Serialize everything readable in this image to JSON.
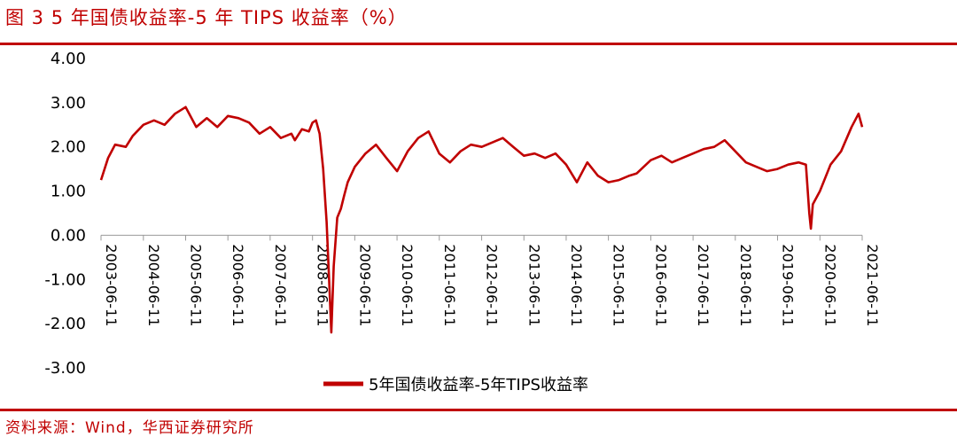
{
  "figure": {
    "title": "图 3 5 年国债收益率-5 年 TIPS 收益率（%）",
    "source": "资料来源：Wind，华西证券研究所"
  },
  "colors": {
    "accent": "#c00000",
    "series": "#c00000"
  },
  "chart_data": {
    "type": "line",
    "ylim": [
      -3,
      4
    ],
    "yticks": [
      "4.00",
      "3.00",
      "2.00",
      "1.00",
      "0.00",
      "-1.00",
      "-2.00",
      "-3.00"
    ],
    "xticks": [
      "2003-06-11",
      "2004-06-11",
      "2005-06-11",
      "2006-06-11",
      "2007-06-11",
      "2008-06-11",
      "2009-06-11",
      "2010-06-11",
      "2011-06-11",
      "2012-06-11",
      "2013-06-11",
      "2014-06-11",
      "2015-06-11",
      "2016-06-11",
      "2017-06-11",
      "2018-06-11",
      "2019-06-11",
      "2020-06-11",
      "2021-06-11"
    ],
    "legend": "top-bottom-center",
    "grid": false,
    "series": [
      {
        "name": "5年国债收益率-5年TIPS收益率",
        "x": [
          "2003-06-11",
          "2003-08-11",
          "2003-10-11",
          "2004-01-11",
          "2004-03-11",
          "2004-06-11",
          "2004-09-11",
          "2004-12-11",
          "2005-03-11",
          "2005-06-11",
          "2005-09-11",
          "2005-12-11",
          "2006-03-11",
          "2006-06-11",
          "2006-09-11",
          "2006-12-11",
          "2007-03-11",
          "2007-06-11",
          "2007-09-11",
          "2007-12-11",
          "2008-01-11",
          "2008-03-11",
          "2008-05-11",
          "2008-06-11",
          "2008-07-11",
          "2008-08-11",
          "2008-09-11",
          "2008-10-11",
          "2008-11-01",
          "2008-11-20",
          "2008-12-11",
          "2009-01-11",
          "2009-02-11",
          "2009-03-11",
          "2009-04-11",
          "2009-06-11",
          "2009-09-11",
          "2009-12-11",
          "2010-03-11",
          "2010-06-11",
          "2010-09-11",
          "2010-12-11",
          "2011-03-11",
          "2011-06-11",
          "2011-09-11",
          "2011-12-11",
          "2012-03-11",
          "2012-06-11",
          "2012-09-11",
          "2012-12-11",
          "2013-03-11",
          "2013-06-11",
          "2013-09-11",
          "2013-12-11",
          "2014-03-11",
          "2014-06-11",
          "2014-09-11",
          "2014-12-11",
          "2015-03-11",
          "2015-06-11",
          "2015-09-11",
          "2015-12-11",
          "2016-02-11",
          "2016-06-11",
          "2016-09-11",
          "2016-12-11",
          "2017-03-11",
          "2017-06-11",
          "2017-09-11",
          "2017-12-11",
          "2018-03-11",
          "2018-06-11",
          "2018-09-11",
          "2018-12-11",
          "2019-03-11",
          "2019-06-11",
          "2019-09-11",
          "2019-12-11",
          "2020-02-11",
          "2020-03-11",
          "2020-03-25",
          "2020-04-11",
          "2020-06-11",
          "2020-09-11",
          "2020-12-11",
          "2021-03-11",
          "2021-05-11",
          "2021-06-11"
        ],
        "y": [
          1.25,
          1.75,
          2.05,
          2.0,
          2.25,
          2.5,
          2.6,
          2.5,
          2.75,
          2.9,
          2.45,
          2.65,
          2.45,
          2.7,
          2.65,
          2.55,
          2.3,
          2.45,
          2.2,
          2.3,
          2.15,
          2.4,
          2.35,
          2.55,
          2.6,
          2.3,
          1.5,
          0.3,
          -1.0,
          -2.2,
          -0.7,
          0.4,
          0.6,
          0.9,
          1.2,
          1.55,
          1.85,
          2.05,
          1.75,
          1.45,
          1.9,
          2.2,
          2.35,
          1.85,
          1.65,
          1.9,
          2.05,
          2.0,
          2.1,
          2.2,
          2.0,
          1.8,
          1.85,
          1.75,
          1.85,
          1.6,
          1.2,
          1.65,
          1.35,
          1.2,
          1.25,
          1.35,
          1.4,
          1.7,
          1.8,
          1.65,
          1.75,
          1.85,
          1.95,
          2.0,
          2.15,
          1.9,
          1.65,
          1.55,
          1.45,
          1.5,
          1.6,
          1.65,
          1.6,
          0.5,
          0.15,
          0.7,
          1.0,
          1.6,
          1.9,
          2.45,
          2.75,
          2.45
        ]
      }
    ]
  }
}
